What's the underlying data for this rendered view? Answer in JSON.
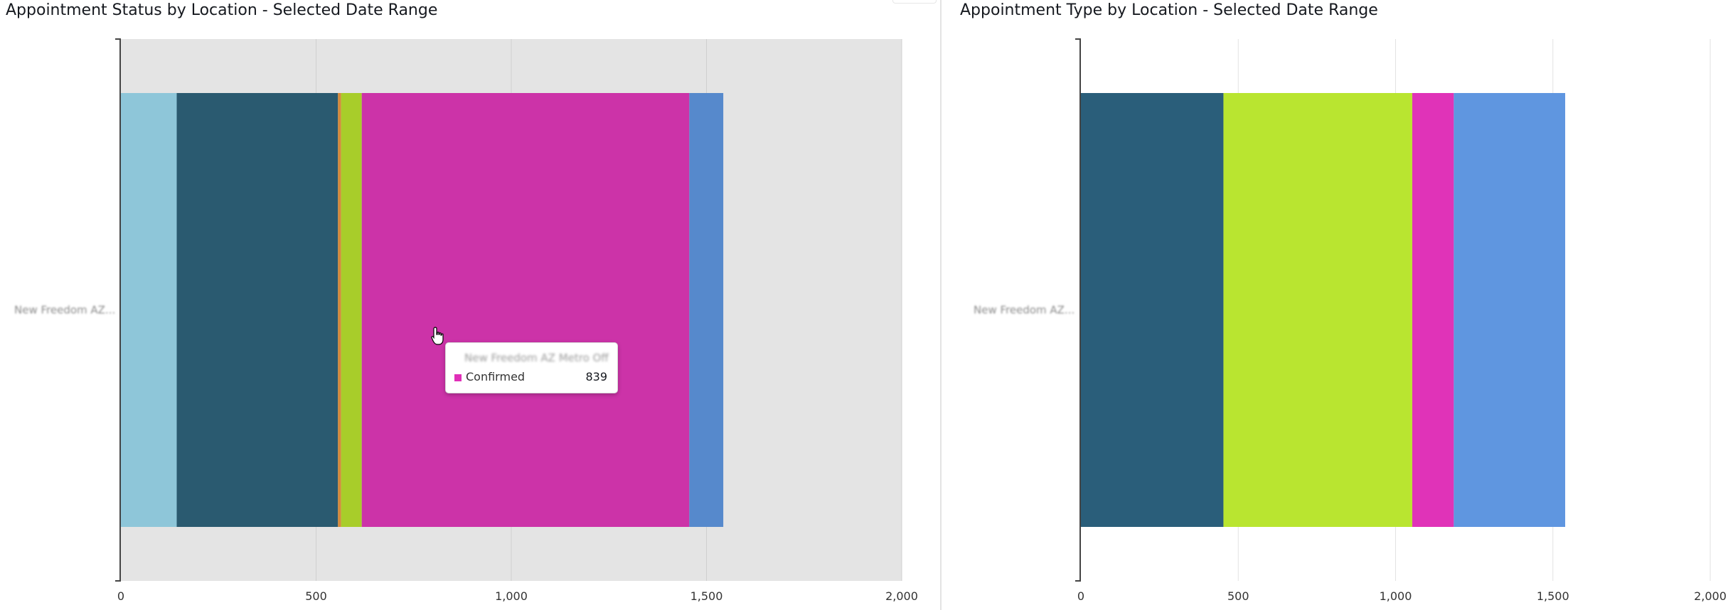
{
  "chart_data": [
    {
      "type": "bar",
      "orientation": "horizontal",
      "stacked": true,
      "title": "Appointment Status by Location - Selected Date Range",
      "categories": [
        "New Freedom AZ..."
      ],
      "xlim": [
        0,
        2000
      ],
      "xticks": [
        "0",
        "500",
        "1,000",
        "1,500",
        "2,000"
      ],
      "xtick_values": [
        0,
        500,
        1000,
        1500,
        2000
      ],
      "grid": true,
      "highlighted_series": 4,
      "series": [
        {
          "values": [
            143
          ],
          "color": "#8ec6d9"
        },
        {
          "values": [
            413
          ],
          "color": "#2a5a70"
        },
        {
          "values": [
            8
          ],
          "color": "#d58a3c"
        },
        {
          "values": [
            53
          ],
          "color": "#a8cd2a"
        },
        {
          "name": "Confirmed",
          "values": [
            839
          ],
          "color": "#cc33a8"
        },
        {
          "values": [
            87
          ],
          "color": "#5689cc"
        }
      ],
      "tooltip": {
        "title": "New Freedom AZ Metro Off",
        "series_label": "Confirmed",
        "value": "839",
        "swatch_color": "#e02fb8"
      }
    },
    {
      "type": "bar",
      "orientation": "horizontal",
      "stacked": true,
      "title": "Appointment Type by Location - Selected Date Range",
      "categories": [
        "New Freedom AZ..."
      ],
      "xlim": [
        0,
        2000
      ],
      "xticks": [
        "0",
        "500",
        "1,000",
        "1,500",
        "2,000"
      ],
      "xtick_values": [
        0,
        500,
        1000,
        1500,
        2000
      ],
      "grid": true,
      "series": [
        {
          "values": [
            453
          ],
          "color": "#2a5e7a"
        },
        {
          "values": [
            600
          ],
          "color": "#b9e530"
        },
        {
          "values": [
            132
          ],
          "color": "#e033b8"
        },
        {
          "values": [
            354
          ],
          "color": "#5f96e0"
        }
      ]
    }
  ]
}
